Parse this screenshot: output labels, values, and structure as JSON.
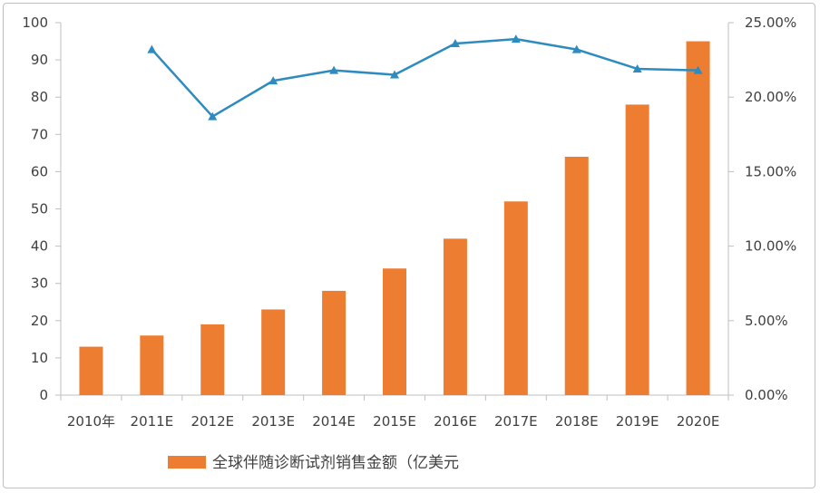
{
  "chart_data": {
    "type": "bar",
    "categories": [
      "2010年",
      "2011E",
      "2012E",
      "2013E",
      "2014E",
      "2015E",
      "2016E",
      "2017E",
      "2018E",
      "2019E",
      "2020E"
    ],
    "series": [
      {
        "name": "全球伴随诊断试剂销售金额（亿美元",
        "type": "bar",
        "axis": "left",
        "color": "#ed7d31",
        "values": [
          13,
          16,
          19,
          23,
          28,
          34,
          42,
          52,
          64,
          78,
          95
        ]
      },
      {
        "name": "",
        "type": "line",
        "axis": "right",
        "color": "#2e8bc0",
        "marker": "triangle",
        "values": [
          null,
          0.232,
          0.187,
          0.211,
          0.218,
          0.215,
          0.236,
          0.239,
          0.232,
          0.219,
          0.218
        ]
      }
    ],
    "y_left": {
      "min": 0,
      "max": 100,
      "step": 10,
      "ticks": [
        "0",
        "10",
        "20",
        "30",
        "40",
        "50",
        "60",
        "70",
        "80",
        "90",
        "100"
      ]
    },
    "y_right": {
      "min": 0,
      "max": 0.25,
      "step": 0.05,
      "ticks": [
        "0.00%",
        "5.00%",
        "10.00%",
        "15.00%",
        "20.00%",
        "25.00%"
      ]
    },
    "title": "",
    "xlabel": "",
    "ylabel": "",
    "legend": {
      "position": "bottom-left",
      "label": "全球伴随诊断试剂销售金额（亿美元"
    },
    "colors": {
      "axis": "#bfbfbf",
      "text": "#404040"
    }
  }
}
